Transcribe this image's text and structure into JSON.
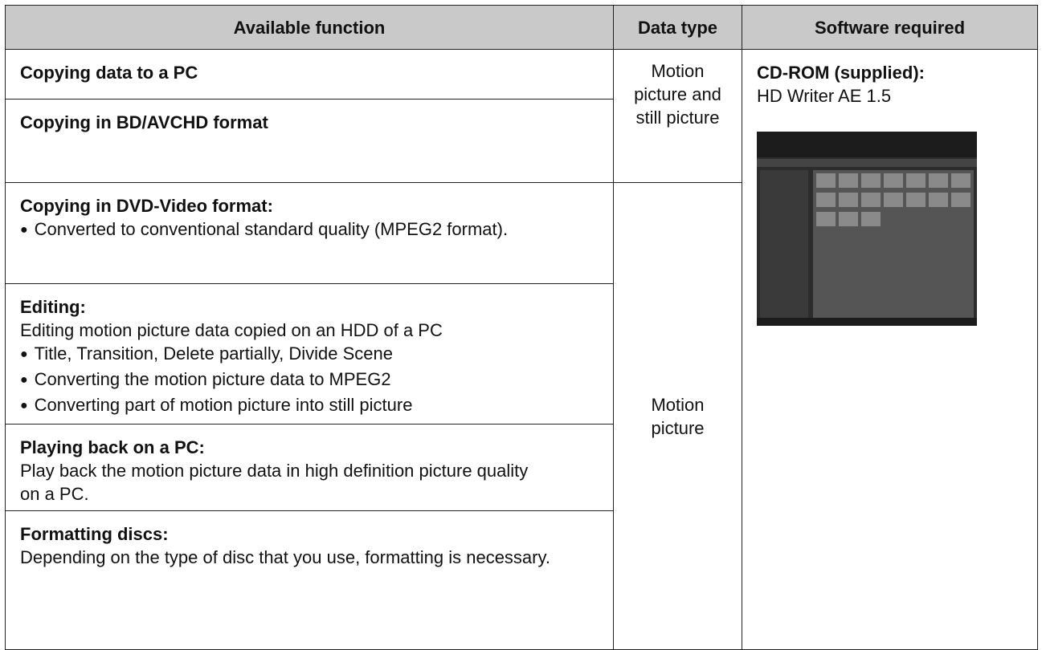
{
  "table": {
    "header": [
      "Available function",
      "Data type",
      "Software required"
    ],
    "functions": [
      {
        "title": "Copying data to a PC"
      },
      {
        "title": "Copying in BD/AVCHD format"
      },
      {
        "title": "Copying in DVD-Video format:",
        "bullets": [
          "Converted to conventional standard quality (MPEG2 format)."
        ]
      },
      {
        "title": "Editing:",
        "text": "Editing motion picture data copied on an HDD of a PC",
        "bullets": [
          "Title, Transition, Delete partially, Divide Scene",
          "Converting the motion picture data to MPEG2",
          "Converting part of motion picture into still picture"
        ]
      },
      {
        "title": "Playing back on a PC:",
        "text": "Play back the motion picture data in high definition picture quality on a PC."
      },
      {
        "title": "Formatting discs:",
        "text": "Depending on the type of disc that you use, formatting is necessary."
      }
    ],
    "data_types": [
      "Motion picture and still picture",
      "Motion picture"
    ],
    "software": {
      "title": "CD-ROM (supplied):",
      "text": "HD Writer AE 1.5"
    }
  }
}
